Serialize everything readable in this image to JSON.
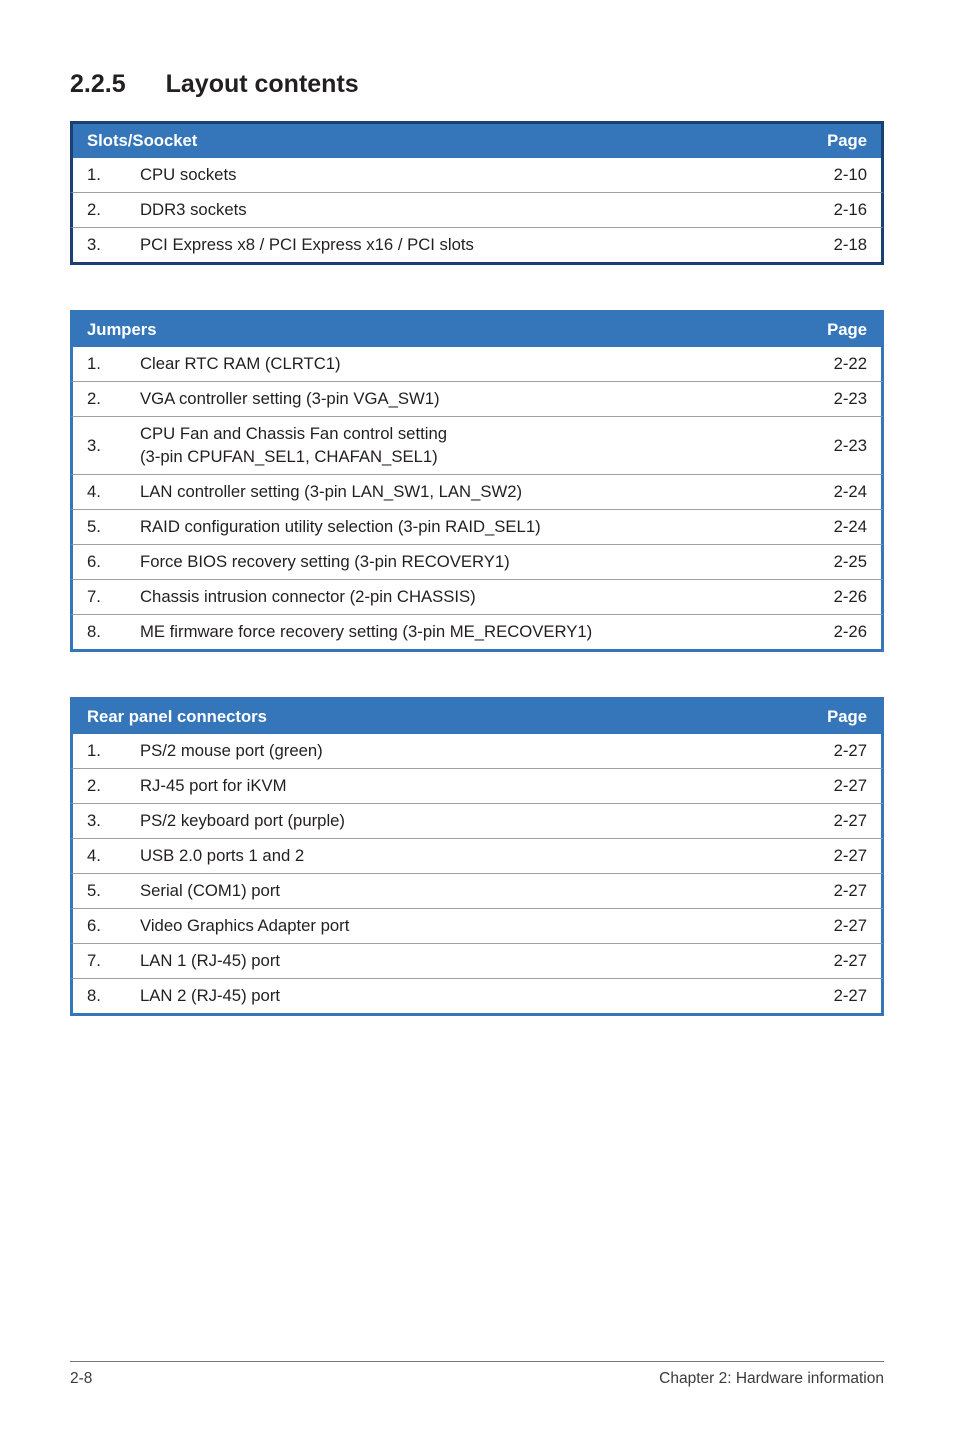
{
  "heading": {
    "number": "2.2.5",
    "title": "Layout contents"
  },
  "colors": {
    "slots": {
      "header_bg": "#3575ba",
      "border": "#1a3f73"
    },
    "jumpers": {
      "header_bg": "#3575ba",
      "border": "#3575ba"
    },
    "rear": {
      "header_bg": "#3575ba",
      "border": "#3575ba"
    }
  },
  "tables": [
    {
      "key": "slots",
      "header_label": "Slots/Soocket",
      "page_label": "Page",
      "rows": [
        {
          "n": "1.",
          "desc": "CPU sockets",
          "page": "2-10"
        },
        {
          "n": "2.",
          "desc": "DDR3 sockets",
          "page": "2-16"
        },
        {
          "n": "3.",
          "desc": "PCI Express x8 / PCI Express x16 / PCI slots",
          "page": "2-18"
        }
      ]
    },
    {
      "key": "jumpers",
      "header_label": "Jumpers",
      "page_label": "Page",
      "rows": [
        {
          "n": "1.",
          "desc": "Clear RTC RAM (CLRTC1)",
          "page": "2-22"
        },
        {
          "n": "2.",
          "desc": "VGA controller setting (3-pin VGA_SW1)",
          "page": "2-23"
        },
        {
          "n": "3.",
          "desc": "CPU Fan and Chassis Fan control setting\n(3-pin CPUFAN_SEL1, CHAFAN_SEL1)",
          "page": "2-23"
        },
        {
          "n": "4.",
          "desc": "LAN controller setting (3-pin LAN_SW1, LAN_SW2)",
          "page": "2-24"
        },
        {
          "n": "5.",
          "desc": "RAID configuration utility selection (3-pin RAID_SEL1)",
          "page": "2-24"
        },
        {
          "n": "6.",
          "desc": "Force BIOS recovery setting (3-pin RECOVERY1)",
          "page": "2-25"
        },
        {
          "n": "7.",
          "desc": "Chassis intrusion connector (2-pin CHASSIS)",
          "page": "2-26"
        },
        {
          "n": "8.",
          "desc": "ME firmware force recovery setting (3-pin ME_RECOVERY1)",
          "page": "2-26"
        }
      ]
    },
    {
      "key": "rear",
      "header_label": "Rear panel connectors",
      "page_label": "Page",
      "rows": [
        {
          "n": "1.",
          "desc": "PS/2 mouse port (green)",
          "page": "2-27"
        },
        {
          "n": "2.",
          "desc": "RJ-45 port for iKVM",
          "page": "2-27"
        },
        {
          "n": "3.",
          "desc": "PS/2 keyboard port (purple)",
          "page": "2-27"
        },
        {
          "n": "4.",
          "desc": "USB 2.0 ports 1 and 2",
          "page": "2-27"
        },
        {
          "n": "5.",
          "desc": "Serial (COM1) port",
          "page": "2-27"
        },
        {
          "n": "6.",
          "desc": "Video Graphics Adapter port",
          "page": "2-27"
        },
        {
          "n": "7.",
          "desc": "LAN 1 (RJ-45) port",
          "page": "2-27"
        },
        {
          "n": "8.",
          "desc": "LAN 2 (RJ-45) port",
          "page": "2-27"
        }
      ]
    }
  ],
  "footer": {
    "left": "2-8",
    "right": "Chapter 2: Hardware information"
  }
}
